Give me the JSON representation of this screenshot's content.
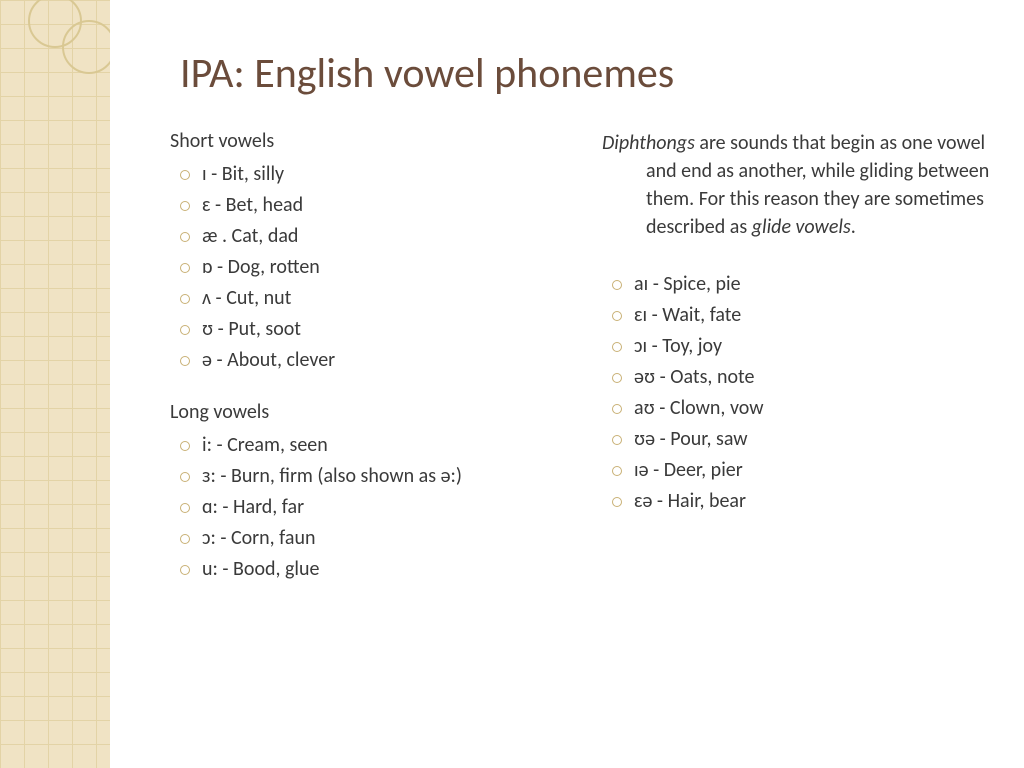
{
  "colors": {
    "background": "#ffffff",
    "pattern_bg": "#f0e3c4",
    "pattern_grid": "#e3d3a6",
    "ring_border": "#d9c893",
    "title_color": "#6b4c3b",
    "body_text": "#3a3a3a",
    "bullet_border": "#c9b176"
  },
  "typography": {
    "title_fontsize": 42,
    "body_fontsize": 20,
    "font_family": "Gill Sans"
  },
  "title": "IPA: English vowel phonemes",
  "left": {
    "short_heading": "Short vowels",
    "short_vowels": [
      "ɪ - Bit, silly",
      "ɛ - Bet, head",
      "æ . Cat, dad",
      "ɒ - Dog, rotten",
      "ʌ - Cut, nut",
      "ʊ - Put, soot",
      "ə - About, clever"
    ],
    "long_heading": "Long vowels",
    "long_vowels": [
      "i: - Cream, seen",
      "ɜ: - Burn, firm (also shown as ə:)",
      "ɑ: - Hard, far",
      "ɔ: - Corn, faun",
      "u: - Bood, glue"
    ]
  },
  "right": {
    "intro_term": "Diphthongs",
    "intro_rest": " are sounds that begin as one vowel and end as another, while gliding between them. For this reason they are sometimes described as ",
    "intro_term2": "glide vowels",
    "intro_end": ".",
    "diphthongs": [
      "aɪ - Spice, pie",
      "ɛɪ - Wait, fate",
      "ɔɪ - Toy, joy",
      "əʊ - Oats, note",
      "aʊ - Clown, vow",
      "ʊə - Pour, saw",
      "ɪə - Deer, pier",
      "ɛə - Hair, bear"
    ]
  }
}
